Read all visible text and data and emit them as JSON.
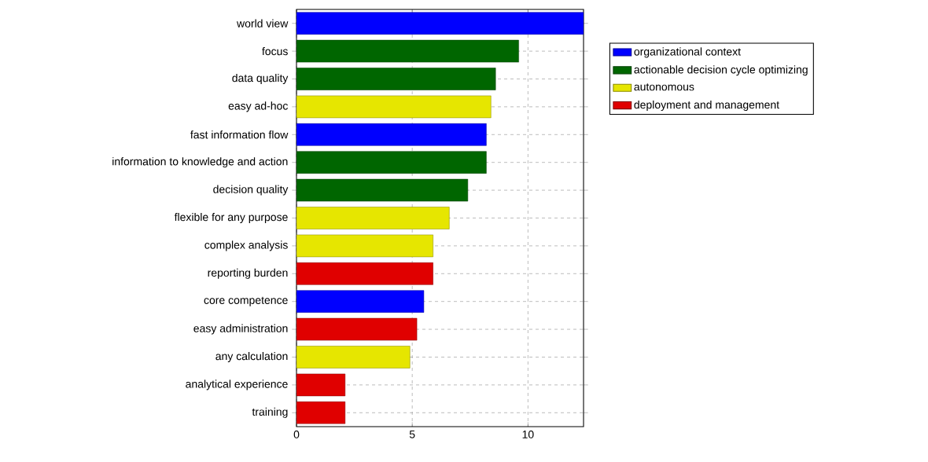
{
  "chart_data": {
    "type": "bar",
    "orientation": "horizontal",
    "categories": [
      "world view",
      "focus",
      "data quality",
      "easy ad-hoc",
      "fast information flow",
      "information to knowledge and action",
      "decision quality",
      "flexible for any purpose",
      "complex analysis",
      "reporting burden",
      "core competence",
      "easy administration",
      "any calculation",
      "analytical experience",
      "training"
    ],
    "series": [
      {
        "name": "organizational context",
        "color": "#0000ff",
        "values": [
          12.4,
          null,
          null,
          null,
          8.2,
          null,
          null,
          null,
          null,
          null,
          5.5,
          null,
          null,
          null,
          null
        ]
      },
      {
        "name": "actionable decision cycle optimizing",
        "color": "#006600",
        "values": [
          null,
          9.6,
          8.6,
          null,
          null,
          8.2,
          7.4,
          null,
          null,
          null,
          null,
          null,
          null,
          null,
          null
        ]
      },
      {
        "name": "autonomous",
        "color": "#e6e600",
        "values": [
          null,
          null,
          null,
          8.4,
          null,
          null,
          null,
          6.6,
          5.9,
          null,
          null,
          null,
          4.9,
          null,
          null
        ]
      },
      {
        "name": "deployment and management",
        "color": "#e00000",
        "values": [
          null,
          null,
          null,
          null,
          null,
          null,
          null,
          null,
          null,
          5.9,
          null,
          5.2,
          null,
          2.1,
          2.1
        ]
      }
    ],
    "xlim": [
      0,
      12.4
    ],
    "xticks": [
      0,
      5,
      10
    ],
    "grid": true,
    "legend": "top right"
  }
}
